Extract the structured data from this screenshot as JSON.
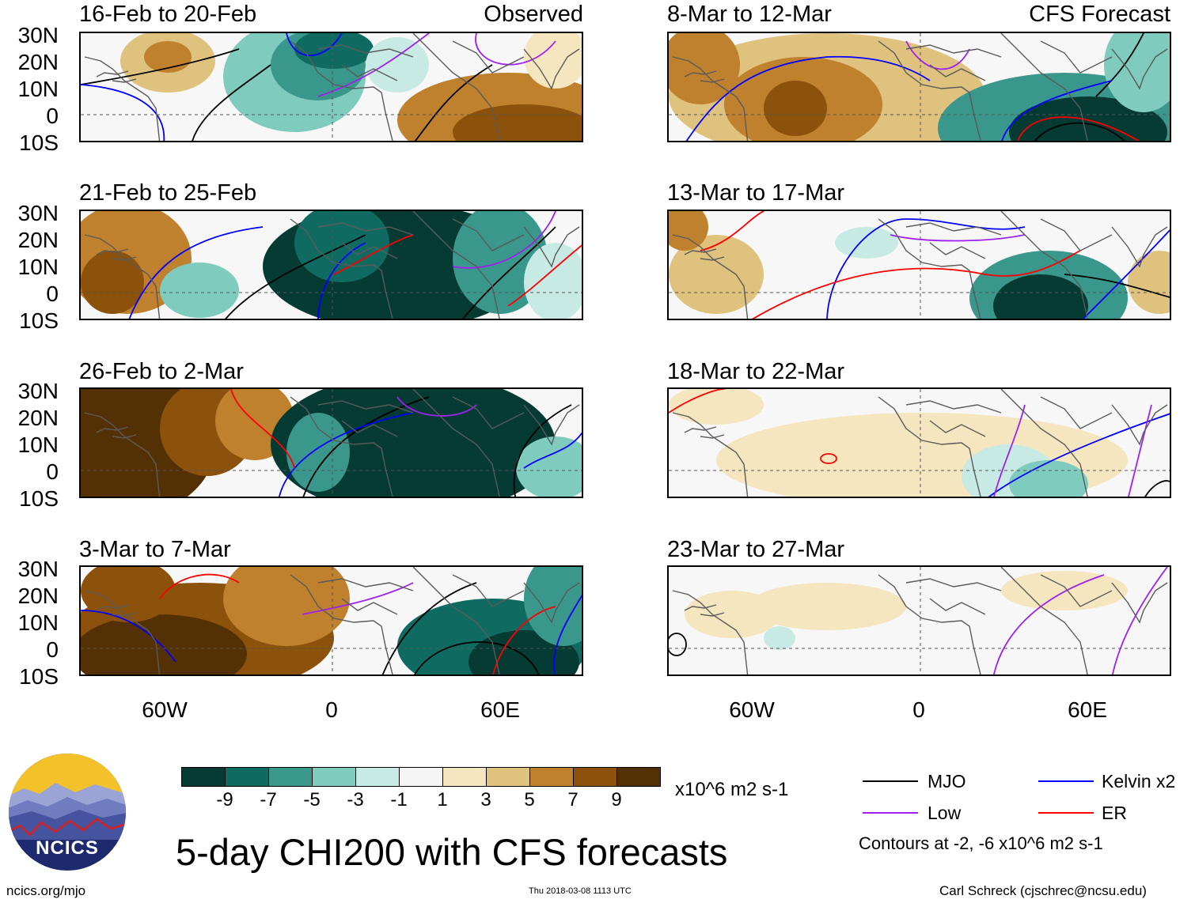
{
  "colors": {
    "bins": [
      "#053b33",
      "#0f6b61",
      "#3a978c",
      "#7fcbbe",
      "#c7eae4",
      "#f5f5f5",
      "#f6e6bf",
      "#dfc27d",
      "#bf812d",
      "#8c510a",
      "#543005"
    ],
    "mjo": "#000000",
    "kelvin": "#0000ff",
    "low": "#a020f0",
    "er": "#ff0000",
    "grid": "#5f5f5f",
    "coast": "#5a5a5a"
  },
  "panels": {
    "p1": {
      "title": "16-Feb to 20-Feb",
      "tag": "Observed"
    },
    "p2": {
      "title": "21-Feb to 25-Feb",
      "tag": ""
    },
    "p3": {
      "title": "26-Feb to 2-Mar",
      "tag": ""
    },
    "p4": {
      "title": "3-Mar to 7-Mar",
      "tag": ""
    },
    "p5": {
      "title": "8-Mar to 12-Mar",
      "tag": "CFS Forecast"
    },
    "p6": {
      "title": "13-Mar to 17-Mar",
      "tag": ""
    },
    "p7": {
      "title": "18-Mar to 22-Mar",
      "tag": ""
    },
    "p8": {
      "title": "23-Mar to 27-Mar",
      "tag": ""
    }
  },
  "lat_labels": [
    "30N",
    "20N",
    "10N",
    "0",
    "10S"
  ],
  "lon_labels": [
    "60W",
    "0",
    "60E"
  ],
  "colorbar": {
    "labels": [
      "-9",
      "-7",
      "-5",
      "-3",
      "-1",
      "1",
      "3",
      "5",
      "7",
      "9"
    ],
    "units": "x10^6 m2 s-1"
  },
  "legend": {
    "mjo": "MJO",
    "kelvin": "Kelvin x2",
    "low": "Low",
    "er": "ER",
    "contours_note": "Contours at -2, -6 x10^6 m2 s-1"
  },
  "title": "5-day CHI200 with CFS forecasts",
  "logo_text": "NCICS",
  "footer": {
    "left": "ncics.org/mjo",
    "center": "Thu 2018-03-08 1113 UTC",
    "right": "Carl Schreck (cjschrec@ncsu.edu)"
  }
}
